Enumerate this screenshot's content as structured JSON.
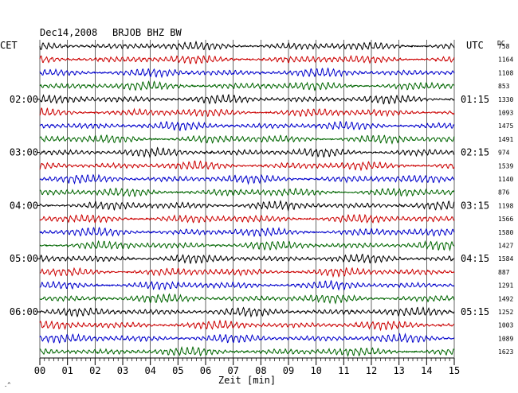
{
  "header": {
    "date": "Dec14,2008",
    "station": "BRJOB BHZ BW",
    "left_zone": "CET",
    "right_zone": "UTC",
    "dc_label": "DC"
  },
  "colors": {
    "trace_cycle": [
      "#000000",
      "#cc0000",
      "#0000cc",
      "#006600"
    ],
    "axes": "#000000",
    "background": "#ffffff"
  },
  "chart_data": {
    "type": "line",
    "title": "Dec14,2008 BRJOB BHZ BW",
    "xlabel": "Zeit [min]",
    "xlim": [
      0,
      15
    ],
    "x_ticks": [
      "00",
      "01",
      "02",
      "03",
      "04",
      "05",
      "06",
      "07",
      "08",
      "09",
      "10",
      "11",
      "12",
      "13",
      "14",
      "15"
    ],
    "grid": true,
    "traces_per_hour": 4,
    "trace_minutes": 15,
    "left_hour_labels": [
      {
        "trace_index": 4,
        "label": "02:00"
      },
      {
        "trace_index": 8,
        "label": "03:00"
      },
      {
        "trace_index": 12,
        "label": "04:00"
      },
      {
        "trace_index": 16,
        "label": "05:00"
      },
      {
        "trace_index": 20,
        "label": "06:00"
      }
    ],
    "right_hour_labels": [
      {
        "trace_index": 4,
        "label": "01:15"
      },
      {
        "trace_index": 8,
        "label": "02:15"
      },
      {
        "trace_index": 12,
        "label": "03:15"
      },
      {
        "trace_index": 16,
        "label": "04:15"
      },
      {
        "trace_index": 20,
        "label": "05:15"
      }
    ],
    "dc_offsets": [
      758,
      1164,
      1108,
      853,
      1330,
      1093,
      1475,
      1491,
      974,
      1539,
      1140,
      876,
      1198,
      1566,
      1580,
      1427,
      1584,
      887,
      1291,
      1492,
      1252,
      1003,
      1089,
      1623
    ]
  }
}
